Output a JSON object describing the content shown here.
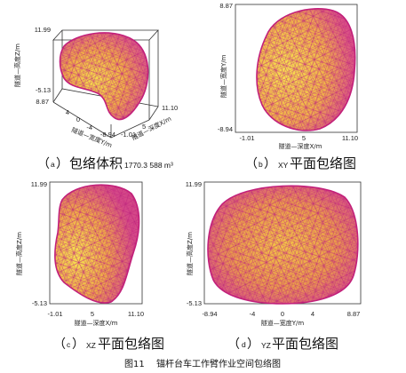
{
  "panel_a": {
    "ticks": {
      "z_top": "11.99",
      "z_bottom": "-5.13",
      "y_top": "8.87",
      "y_4": "4",
      "y_0": "0",
      "y_m4": "-4",
      "y_bottom": "-8.94",
      "x_left": "-1.01",
      "x_right": "11.10",
      "x_mid": "5"
    },
    "z_label": "隧道—高度Z/m",
    "y_label": "隧道—宽度Y/m",
    "x_label": "隧道—深度X/m",
    "caption": {
      "paren_open": "（",
      "letter": "a",
      "paren_close": "）",
      "text": "包络体积",
      "value": "1770.3 588 m³"
    }
  },
  "panel_b": {
    "ticks": {
      "y_top": "8.87",
      "y_bottom": "-8.94",
      "x_left": "-1.01",
      "x_mid": "5",
      "x_right": "11.10"
    },
    "y_label": "隧道—宽度Y/m",
    "x_label": "隧道—深度X/m",
    "caption": {
      "paren_open": "（",
      "letter": "b",
      "paren_close": "）",
      "prefix": "XY",
      "text": "平面包络图"
    }
  },
  "panel_c": {
    "ticks": {
      "y_top": "11.99",
      "y_bottom": "-5.13",
      "x_left": "-1.01",
      "x_mid": "5",
      "x_right": "11.10"
    },
    "y_label": "隧道—高度Z/m",
    "x_label": "隧道—深度X/m",
    "caption": {
      "paren_open": "（",
      "letter": "c",
      "paren_close": "）",
      "prefix": "XZ",
      "text": "平面包络图"
    }
  },
  "panel_d": {
    "ticks": {
      "y_top": "11.99",
      "y_bottom": "-5.13",
      "x_left": "-8.94",
      "x_m4": "-4",
      "x_0": "0",
      "x_4": "4",
      "x_right": "8.87"
    },
    "y_label": "隧道—高度Z/m",
    "x_label": "隧道—宽度Y/m",
    "caption": {
      "paren_open": "（",
      "letter": "d",
      "paren_close": "）",
      "prefix": "YZ",
      "text": "平面包络图"
    }
  },
  "figure_title": "图11　 锚杆台车工作臂作业空间包络图",
  "colors": {
    "fill_inner": "#f2d244",
    "fill_mid": "#e8a24a",
    "mesh": "#d23a8a",
    "edge": "#c2207a",
    "background": "#ffffff"
  }
}
